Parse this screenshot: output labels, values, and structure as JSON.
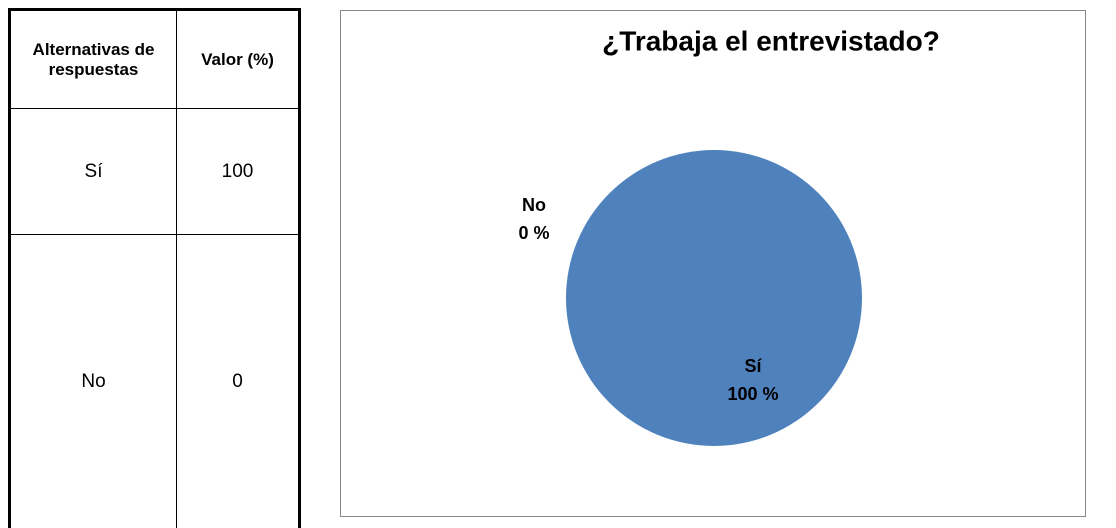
{
  "table": {
    "headers": [
      "Alternativas de respuestas",
      "Valor (%)"
    ],
    "rows": [
      [
        "Sí",
        100
      ],
      [
        "No",
        0
      ]
    ]
  },
  "chart_data": {
    "type": "pie",
    "title": "¿Trabaja el entrevistado?",
    "categories": [
      "Sí",
      "No"
    ],
    "values": [
      100,
      0
    ],
    "value_labels": [
      "100 %",
      "0 %"
    ],
    "colors": [
      "#4f81bd",
      "#c0504d"
    ]
  }
}
